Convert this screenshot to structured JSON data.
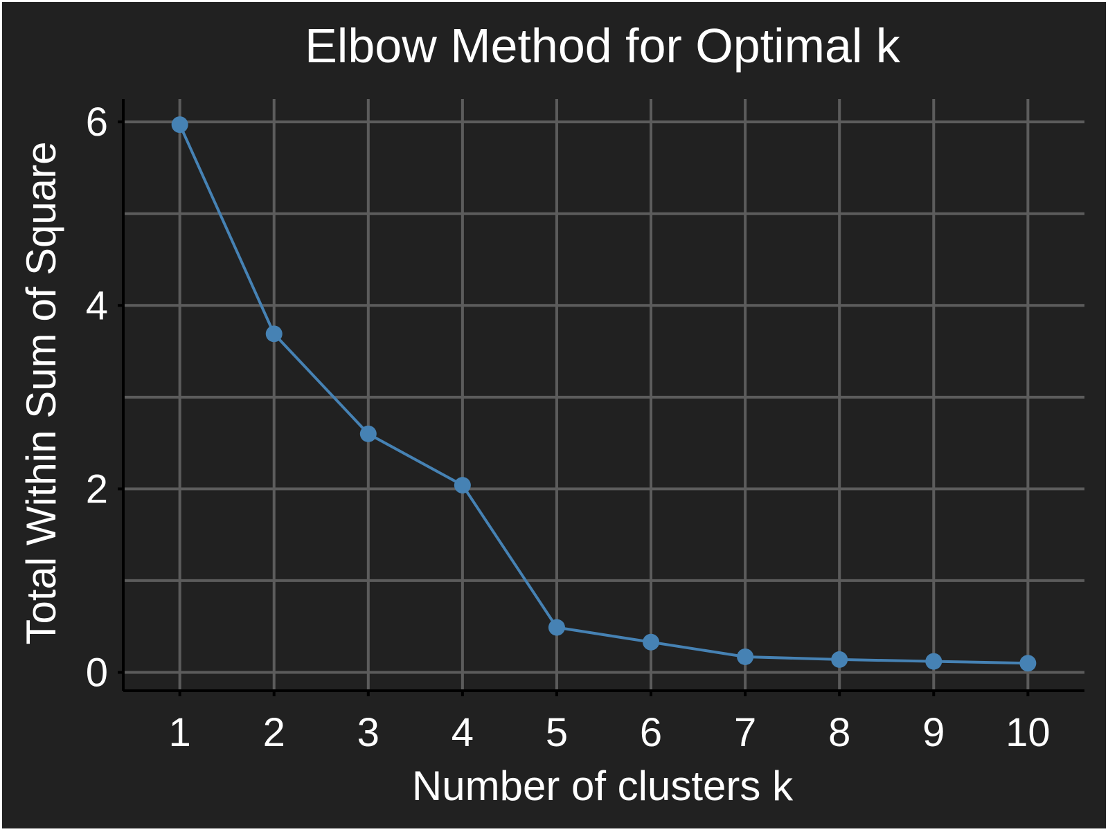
{
  "chart_data": {
    "type": "line",
    "title": "Elbow Method for Optimal k",
    "xlabel": "Number of clusters k",
    "ylabel": "Total Within Sum of Square",
    "x": [
      1,
      2,
      3,
      4,
      5,
      6,
      7,
      8,
      9,
      10
    ],
    "x_ticks": [
      "1",
      "2",
      "3",
      "4",
      "5",
      "6",
      "7",
      "8",
      "9",
      "10"
    ],
    "y_ticks": [
      "0",
      "2",
      "4",
      "6"
    ],
    "y_tick_values": [
      0,
      2,
      4,
      6
    ],
    "y_minor_gridlines": [
      1,
      3,
      5
    ],
    "xlim": [
      0.4,
      10.6
    ],
    "ylim": [
      -0.2,
      6.25
    ],
    "grid": true,
    "series": [
      {
        "values": [
          5.97,
          3.69,
          2.6,
          2.04,
          0.49,
          0.33,
          0.17,
          0.14,
          0.12,
          0.1
        ]
      }
    ],
    "colors": {
      "background": "#212121",
      "panel_border": "#ffffff",
      "grid": "#5c5c5c",
      "axis": "#000000",
      "text": "#ffffff",
      "line": "#4682b4"
    }
  }
}
